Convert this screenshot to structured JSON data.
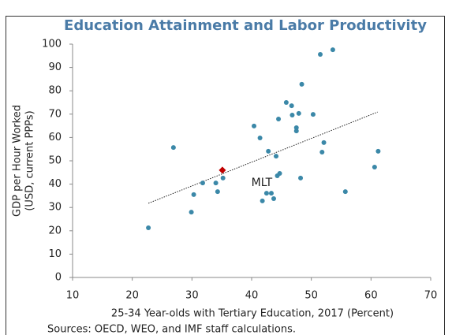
{
  "chart_data": {
    "type": "scatter",
    "title": "Education Attainment and Labor Productivity",
    "xlabel": "25-34 Year-olds with Tertiary Education, 2017 (Percent)",
    "ylabel": [
      "GDP per Hour Worked",
      "(USD, current PPPs)"
    ],
    "source": "Sources: OECD, WEO, and IMF staff calculations.",
    "xlim": [
      10,
      70
    ],
    "xticks": [
      10,
      20,
      30,
      40,
      50,
      60,
      70
    ],
    "ylim": [
      0,
      100
    ],
    "yticks": [
      0,
      10,
      20,
      30,
      40,
      50,
      60,
      70,
      80,
      90,
      100
    ],
    "grid": false,
    "series": [
      {
        "color": "#3b88a8",
        "marker": "circle",
        "x": [
          22.7,
          26.9,
          29.9,
          30.3,
          31.8,
          34.0,
          34.3,
          35.2,
          40.4,
          41.4,
          41.8,
          42.5,
          42.8,
          43.3,
          43.7,
          44.1,
          44.3,
          44.7,
          44.5,
          45.8,
          46.7,
          46.8,
          47.5,
          47.5,
          47.9,
          48.2,
          48.4,
          50.3,
          51.5,
          51.8,
          52.1,
          53.6,
          55.7,
          60.6,
          61.2
        ],
        "y": [
          21.3,
          55.7,
          28,
          35.5,
          40.5,
          40.5,
          36.8,
          42.6,
          64.9,
          59.8,
          32.8,
          36.1,
          54.1,
          36.1,
          33.8,
          52,
          43.6,
          44.6,
          67.9,
          75,
          73.6,
          69.6,
          64.2,
          62.8,
          70.3,
          42.6,
          82.8,
          69.9,
          95.6,
          53.7,
          57.8,
          97.6,
          36.8,
          47.3,
          54.1
        ]
      },
      {
        "color": "#c00000",
        "marker": "diamond",
        "x": [
          35.1
        ],
        "y": [
          46
        ]
      }
    ],
    "trendline": {
      "color": "#222222",
      "x": [
        22.7,
        61.1
      ],
      "y": [
        31.8,
        70.9
      ]
    },
    "annotations": [
      {
        "text": "MLT"
      }
    ]
  }
}
